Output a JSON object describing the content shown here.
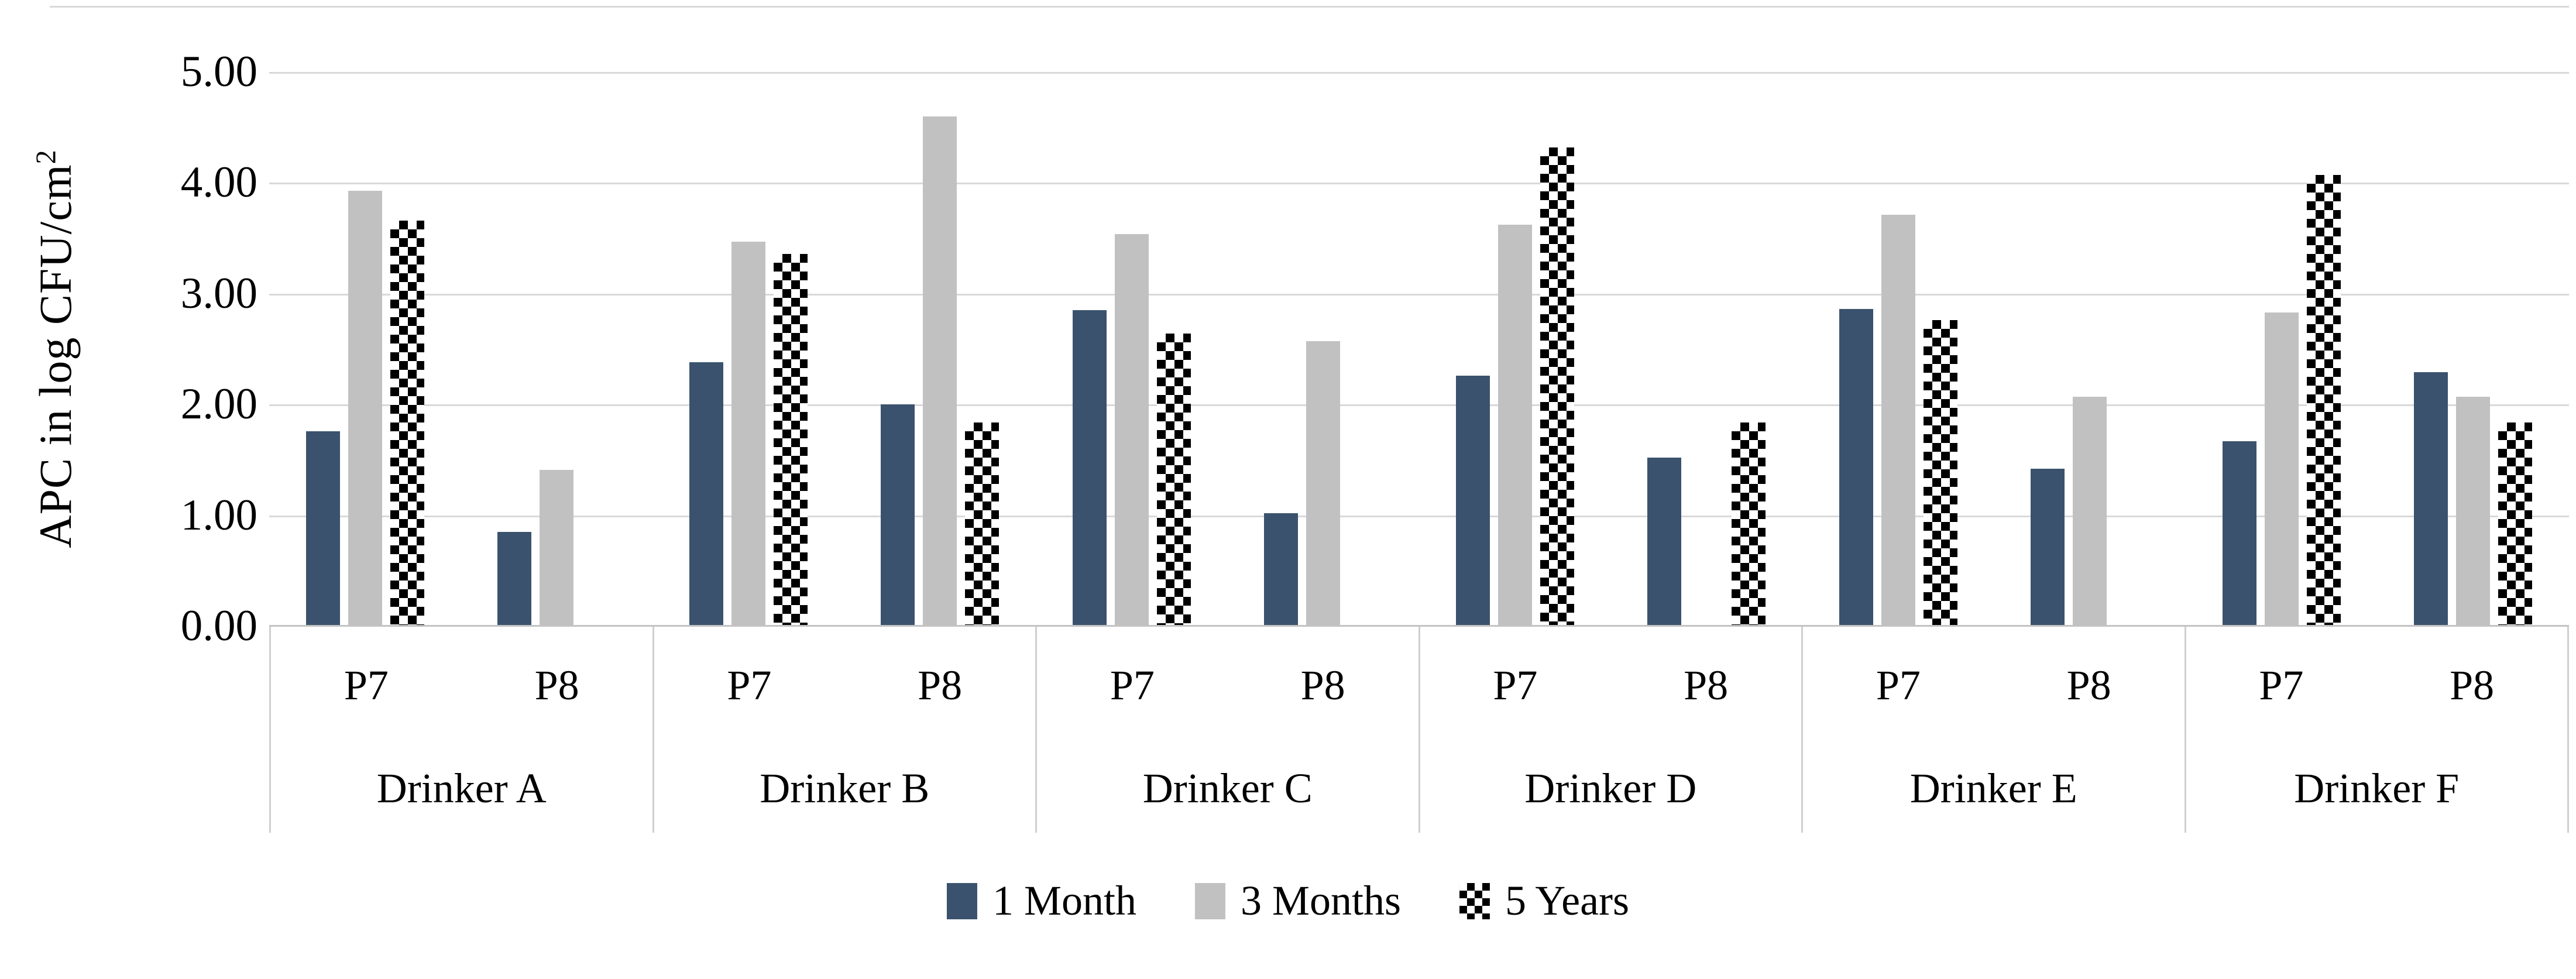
{
  "figure": {
    "background": "#ffffff",
    "top_border_color": "#d9d9d9",
    "gridline_color": "#d9d9d9",
    "axis_line_color": "#c3c3c3"
  },
  "chart_data": {
    "type": "bar",
    "title": "",
    "ylabel_main": "APC in log CFU/cm",
    "ylabel_sup": "2",
    "ylim": [
      0,
      5
    ],
    "y_ticks": [
      "5.00",
      "4.00",
      "3.00",
      "2.00",
      "1.00",
      "0.00"
    ],
    "grid": true,
    "legend_position": "bottom-center",
    "series": [
      {
        "name": "1 Month",
        "style": "solid",
        "color": "#3a526d"
      },
      {
        "name": "3 Months",
        "style": "solid",
        "color": "#c1c1c1"
      },
      {
        "name": "5 Years",
        "style": "checker",
        "color": "#000000"
      }
    ],
    "groups": [
      {
        "label": "Drinker A",
        "positions": [
          {
            "label": "P7",
            "values": [
              1.76,
              3.93,
              3.66
            ]
          },
          {
            "label": "P8",
            "values": [
              0.85,
              1.41,
              null
            ]
          }
        ]
      },
      {
        "label": "Drinker B",
        "positions": [
          {
            "label": "P7",
            "values": [
              2.38,
              3.47,
              3.36
            ]
          },
          {
            "label": "P8",
            "values": [
              2.0,
              4.6,
              1.84
            ]
          }
        ]
      },
      {
        "label": "Drinker C",
        "positions": [
          {
            "label": "P7",
            "values": [
              2.85,
              3.54,
              2.64
            ]
          },
          {
            "label": "P8",
            "values": [
              1.02,
              2.57,
              null
            ]
          }
        ]
      },
      {
        "label": "Drinker D",
        "positions": [
          {
            "label": "P7",
            "values": [
              2.26,
              3.62,
              4.32
            ]
          },
          {
            "label": "P8",
            "values": [
              1.52,
              null,
              1.84
            ]
          }
        ]
      },
      {
        "label": "Drinker E",
        "positions": [
          {
            "label": "P7",
            "values": [
              2.86,
              3.71,
              2.76
            ]
          },
          {
            "label": "P8",
            "values": [
              1.42,
              2.07,
              null
            ]
          }
        ]
      },
      {
        "label": "Drinker F",
        "positions": [
          {
            "label": "P7",
            "values": [
              1.67,
              2.83,
              4.07
            ]
          },
          {
            "label": "P8",
            "values": [
              2.29,
              2.07,
              1.84
            ]
          }
        ]
      }
    ]
  }
}
